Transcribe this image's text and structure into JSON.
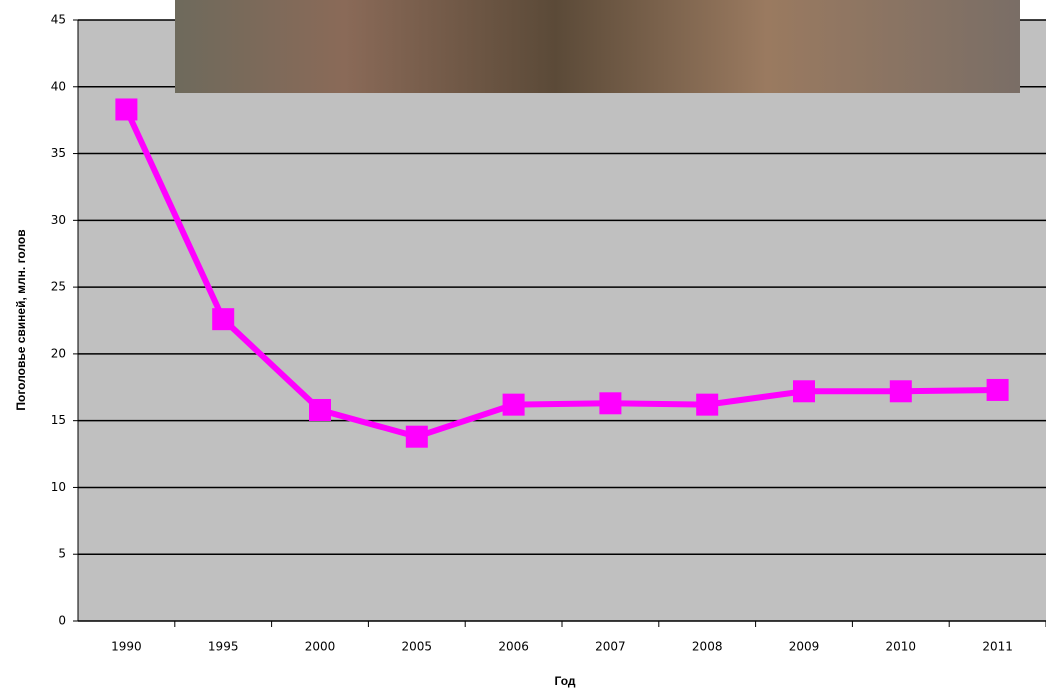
{
  "chart_data": {
    "type": "line",
    "x_label": "Год",
    "y_label": "Поголовье свиней, млн. голов",
    "categories": [
      "1990",
      "1995",
      "2000",
      "2005",
      "2006",
      "2007",
      "2008",
      "2009",
      "2010",
      "2011"
    ],
    "values": [
      38.3,
      22.6,
      15.8,
      13.8,
      16.2,
      16.3,
      16.2,
      17.2,
      17.2,
      17.3
    ],
    "color": "#ff00ff",
    "ylim": [
      0,
      45
    ],
    "yticks": [
      0,
      5,
      10,
      15,
      20,
      25,
      30,
      35,
      40,
      45
    ],
    "grid": true
  }
}
